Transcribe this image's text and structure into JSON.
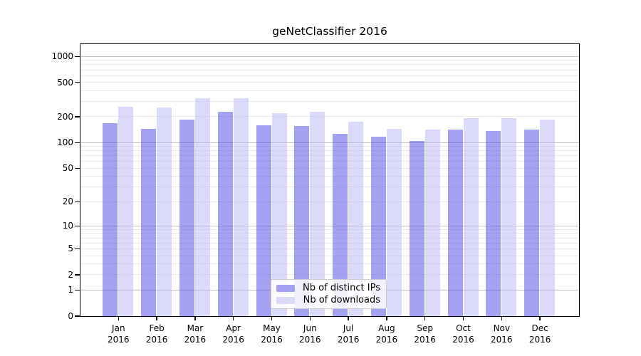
{
  "title": "geNetClassifier 2016",
  "chart_data": {
    "type": "bar",
    "title": "geNetClassifier 2016",
    "yscale": "log1p",
    "ylim": [
      0,
      1400
    ],
    "grid": true,
    "legend_position": "lower center",
    "year": "2016",
    "categories": [
      "Jan",
      "Feb",
      "Mar",
      "Apr",
      "May",
      "Jun",
      "Jul",
      "Aug",
      "Sep",
      "Oct",
      "Nov",
      "Dec"
    ],
    "x_tick_labels": [
      "Jan 2016",
      "Feb 2016",
      "Mar 2016",
      "Apr 2016",
      "May 2016",
      "Jun 2016",
      "Jul 2016",
      "Aug 2016",
      "Sep 2016",
      "Oct 2016",
      "Nov 2016",
      "Dec 2016"
    ],
    "y_ticks": [
      0,
      1,
      2,
      5,
      10,
      20,
      50,
      100,
      200,
      500,
      1000
    ],
    "series": [
      {
        "name": "Nb of distinct IPs",
        "color": "#a2a2f0",
        "fill": "rgba(69,69,225,0.5)",
        "values": [
          169,
          146,
          187,
          228,
          160,
          156,
          127,
          118,
          104,
          141,
          137,
          142
        ]
      },
      {
        "name": "Nb of downloads",
        "color": "#dadaf8",
        "fill": "rgba(181,181,245,0.5)",
        "values": [
          260,
          254,
          330,
          328,
          220,
          227,
          174,
          146,
          143,
          192,
          191,
          185
        ]
      }
    ],
    "colors": {
      "background": "#ffffff",
      "axis": "#000000",
      "major_grid": "#c3c3c3",
      "minor_grid": "#eaeaea"
    }
  }
}
